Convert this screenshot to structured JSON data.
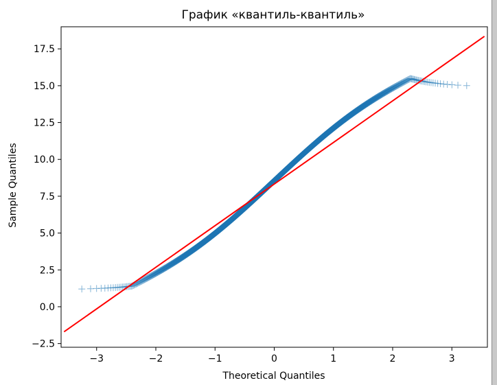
{
  "chart_data": {
    "type": "scatter",
    "title": "График «квантиль-квантиль»",
    "xlabel": "Theoretical Quantiles",
    "ylabel": "Sample Quantiles",
    "xlim": [
      -3.6,
      3.6
    ],
    "ylim": [
      -2.75,
      19.0
    ],
    "xticks": [
      {
        "value": -3,
        "label": "−3"
      },
      {
        "value": -2,
        "label": "−2"
      },
      {
        "value": -1,
        "label": "−1"
      },
      {
        "value": 0,
        "label": "0"
      },
      {
        "value": 1,
        "label": "1"
      },
      {
        "value": 2,
        "label": "2"
      },
      {
        "value": 3,
        "label": "3"
      }
    ],
    "yticks": [
      {
        "value": -2.5,
        "label": "−2.5"
      },
      {
        "value": 0.0,
        "label": "0.0"
      },
      {
        "value": 2.5,
        "label": "2.5"
      },
      {
        "value": 5.0,
        "label": "5.0"
      },
      {
        "value": 7.5,
        "label": "7.5"
      },
      {
        "value": 10.0,
        "label": "10.0"
      },
      {
        "value": 12.5,
        "label": "12.5"
      },
      {
        "value": 15.0,
        "label": "15.0"
      },
      {
        "value": 17.5,
        "label": "17.5"
      }
    ],
    "grid": false,
    "series": [
      {
        "kind": "scatter",
        "marker": "+",
        "color": "#1f77b4",
        "points_model": {
          "n": 2600,
          "x_range": [
            -3.55,
            3.55
          ],
          "center": 8.55,
          "slope": 2.9,
          "s_curve_amplitude": 0.72,
          "s_curve_frequency": 1.2,
          "lower_floor": 1.15,
          "upper_cap": 14.9,
          "lower_knee_x": -2.4,
          "upper_knee_x": 2.3,
          "tail_softness": 0.55
        }
      },
      {
        "kind": "line",
        "color": "#ff0000",
        "x": [
          -3.55,
          3.55
        ],
        "y": [
          -1.7,
          18.35
        ]
      }
    ]
  }
}
